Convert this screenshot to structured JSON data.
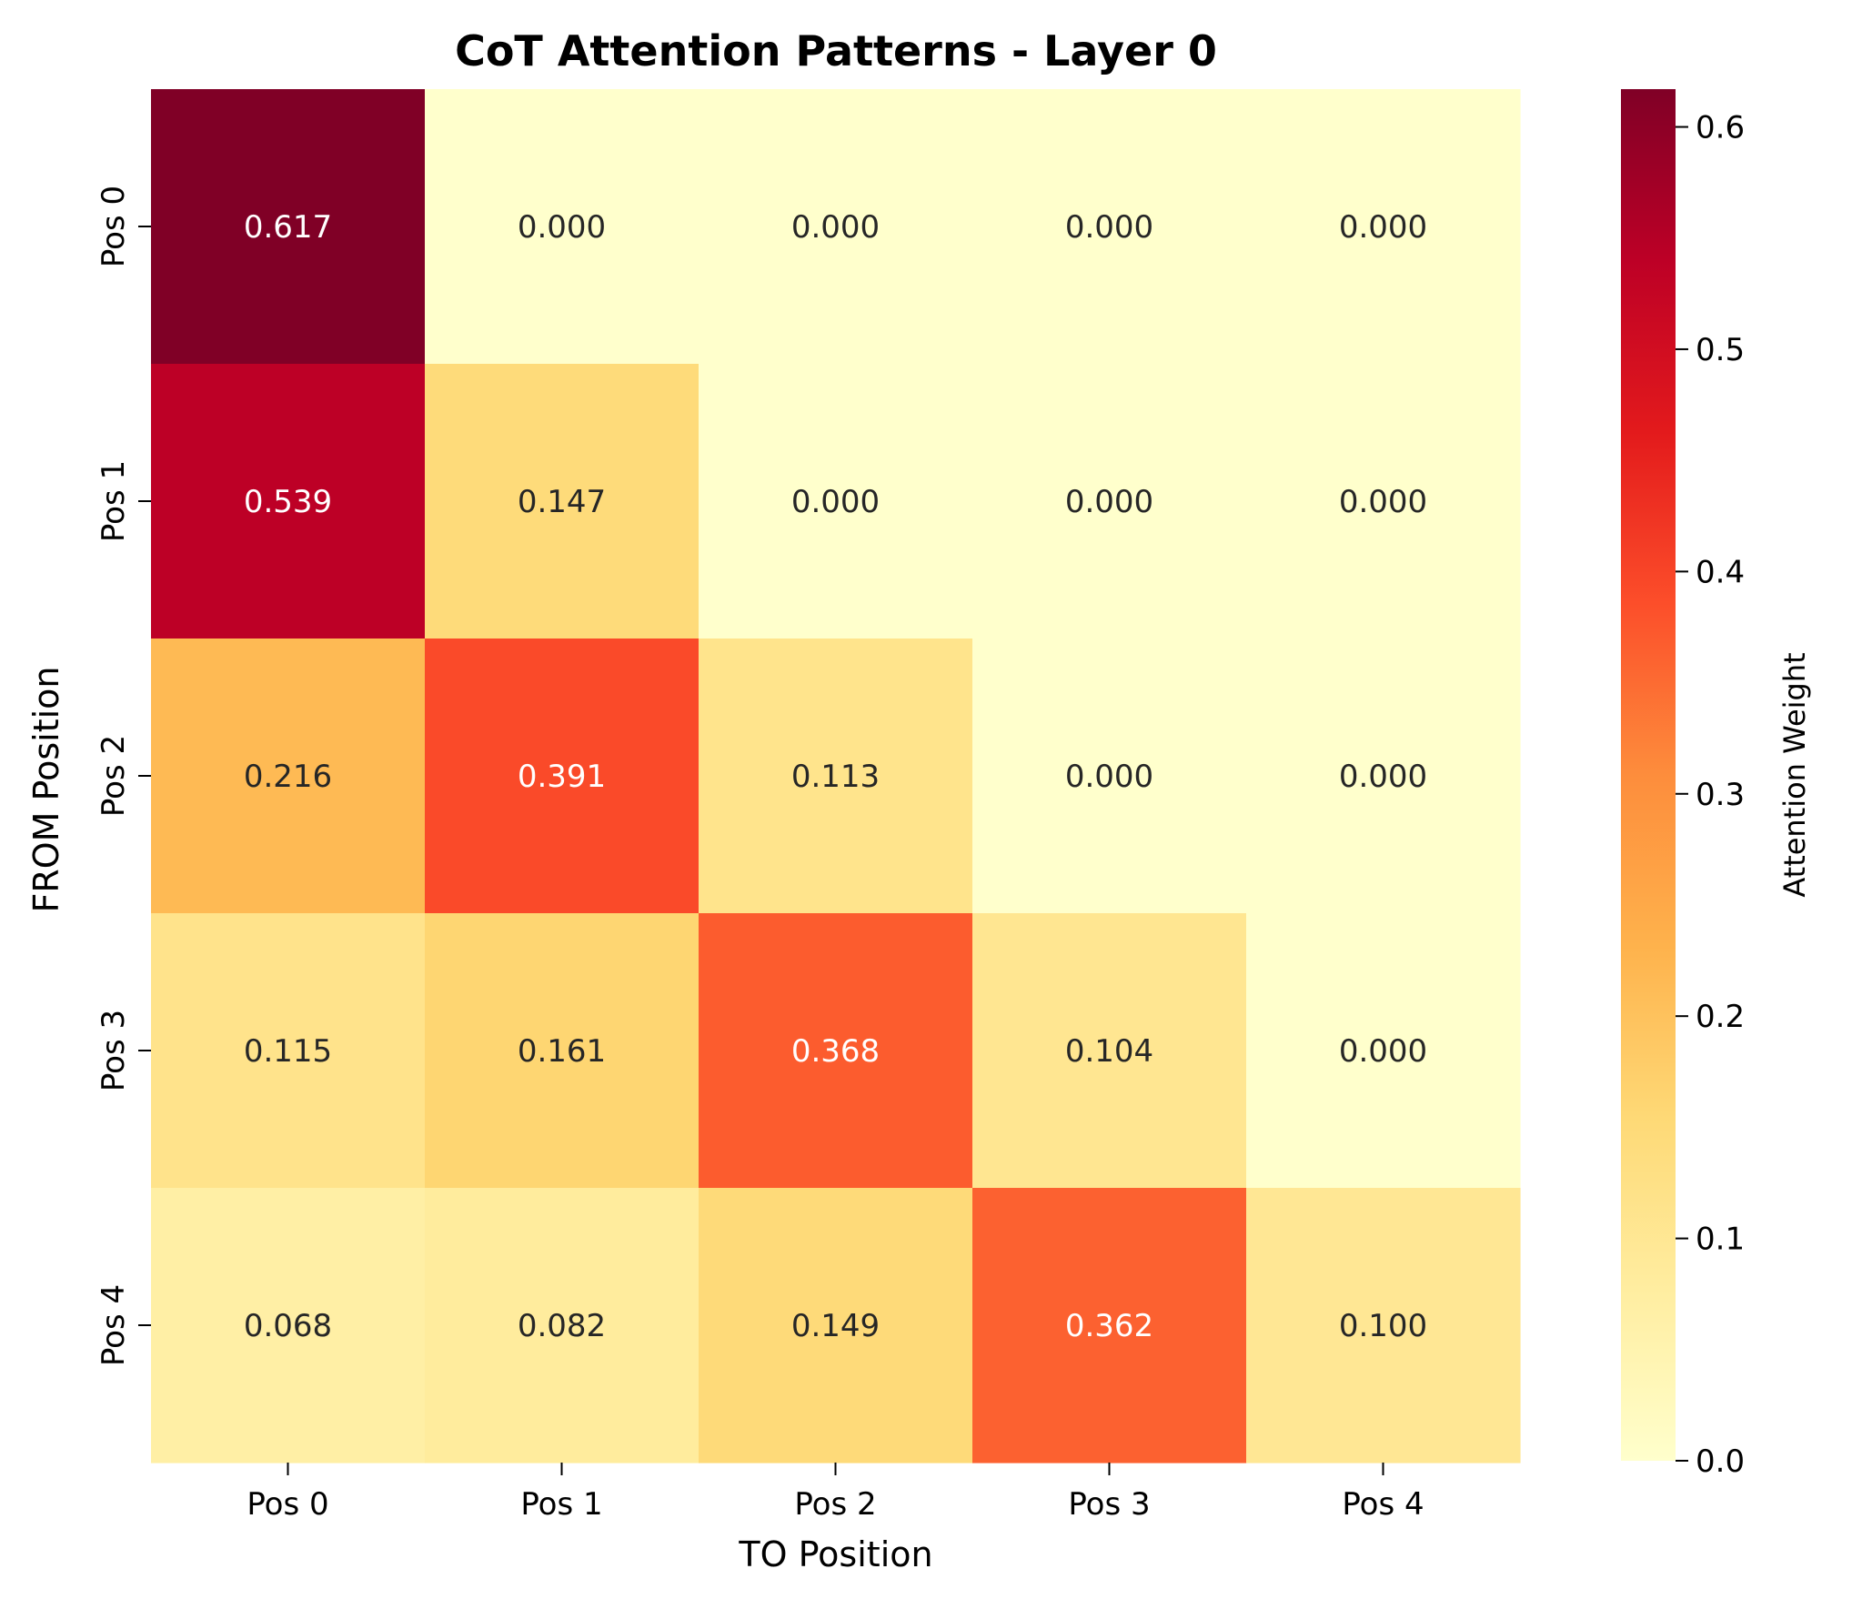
{
  "chart_data": {
    "type": "heatmap",
    "title": "CoT Attention Patterns - Layer 0",
    "xlabel": "TO Position",
    "ylabel": "FROM Position",
    "x_categories": [
      "Pos 0",
      "Pos 1",
      "Pos 2",
      "Pos 3",
      "Pos 4"
    ],
    "y_categories": [
      "Pos 0",
      "Pos 1",
      "Pos 2",
      "Pos 3",
      "Pos 4"
    ],
    "values": [
      [
        0.617,
        0.0,
        0.0,
        0.0,
        0.0
      ],
      [
        0.539,
        0.147,
        0.0,
        0.0,
        0.0
      ],
      [
        0.216,
        0.391,
        0.113,
        0.0,
        0.0
      ],
      [
        0.115,
        0.161,
        0.368,
        0.104,
        0.0
      ],
      [
        0.068,
        0.082,
        0.149,
        0.362,
        0.1
      ]
    ],
    "value_format": "0.000",
    "colormap": "YlOrRd",
    "color_range": [
      0.0,
      0.617
    ],
    "colorbar": {
      "label": "Attention Weight",
      "ticks": [
        "0.0",
        "0.1",
        "0.2",
        "0.3",
        "0.4",
        "0.5",
        "0.6"
      ],
      "tick_values": [
        0.0,
        0.1,
        0.2,
        0.3,
        0.4,
        0.5,
        0.6
      ]
    },
    "grid": false,
    "legend": "colorbar-right"
  }
}
